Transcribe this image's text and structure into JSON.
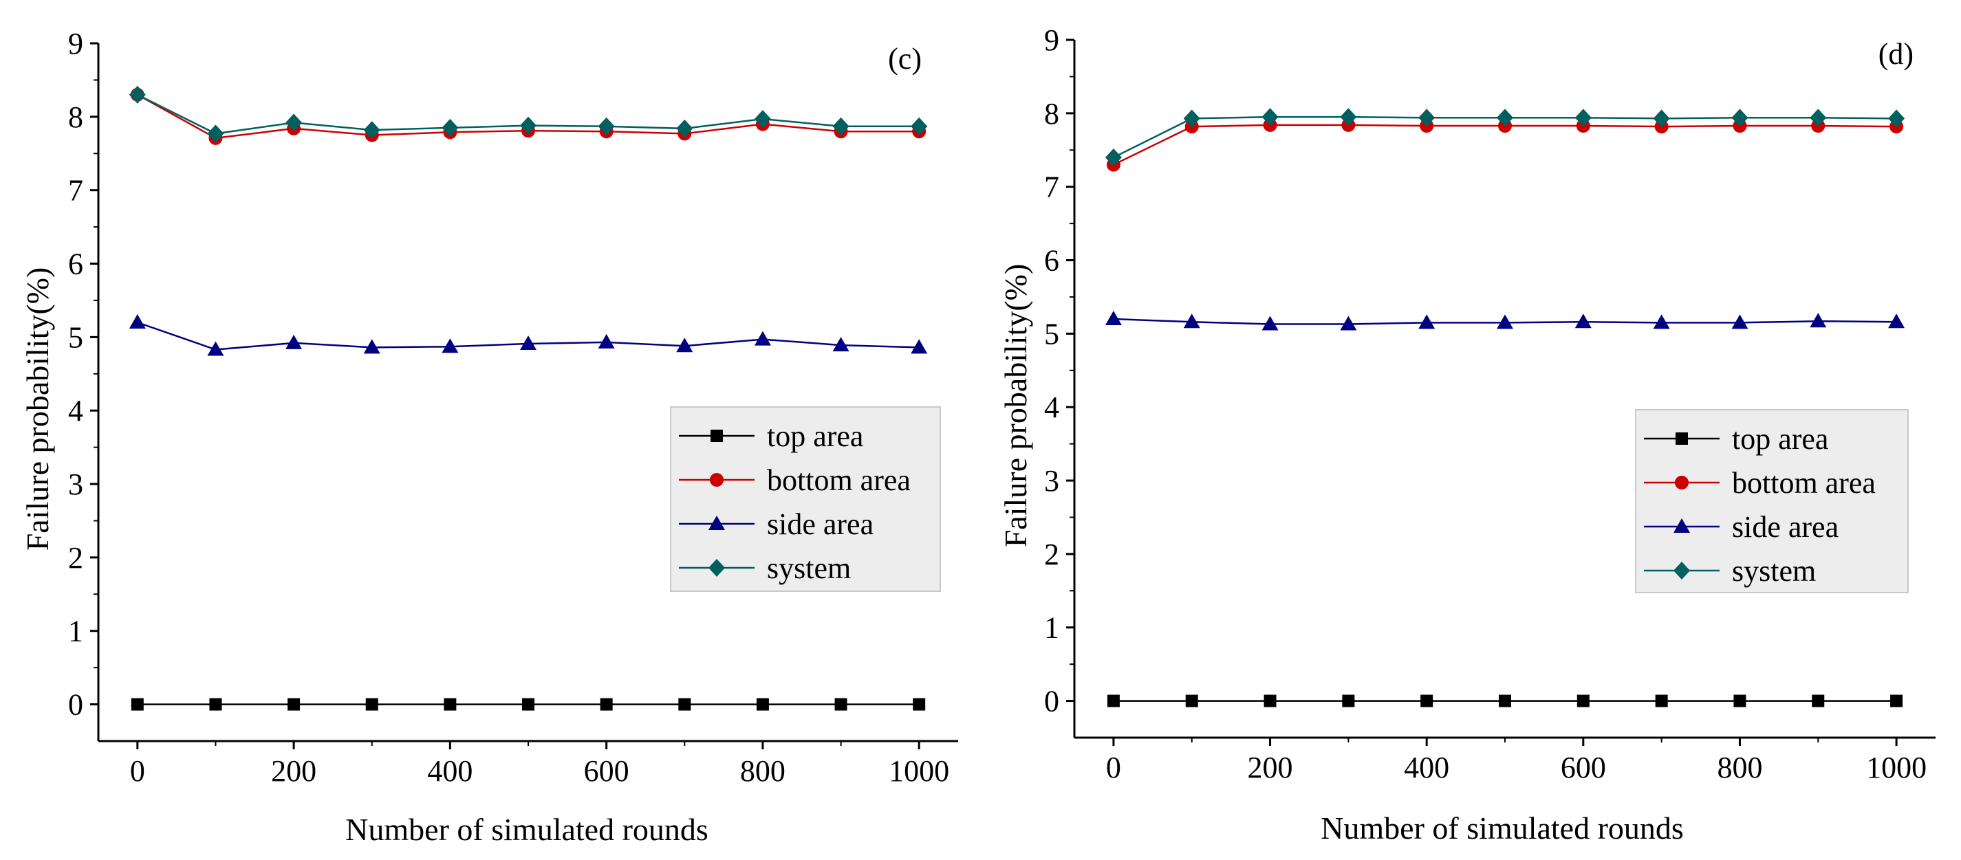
{
  "chart_data": [
    {
      "type": "line",
      "panel_label": "(c)",
      "xlabel": "Number of simulated rounds",
      "ylabel": "Failure probability(%)",
      "xlim": [
        -50,
        1050
      ],
      "ylim": [
        -0.5,
        9
      ],
      "xticks": [
        0,
        200,
        400,
        600,
        800,
        1000
      ],
      "xtick_labels": [
        "0",
        "200",
        "400",
        "600",
        "800",
        "1000"
      ],
      "yticks": [
        0,
        1,
        2,
        3,
        4,
        5,
        6,
        7,
        8,
        9
      ],
      "ytick_labels": [
        "0",
        "1",
        "2",
        "3",
        "4",
        "5",
        "6",
        "7",
        "8",
        "9"
      ],
      "x": [
        0,
        100,
        200,
        300,
        400,
        500,
        600,
        700,
        800,
        900,
        1000
      ],
      "legend_position": "center-right",
      "series": [
        {
          "name": "top area",
          "color": "#000000",
          "marker": "square",
          "values": [
            0,
            0,
            0,
            0,
            0,
            0,
            0,
            0,
            0,
            0,
            0
          ]
        },
        {
          "name": "bottom area",
          "color": "#cc0000",
          "marker": "circle",
          "values": [
            8.3,
            7.71,
            7.84,
            7.75,
            7.79,
            7.81,
            7.8,
            7.77,
            7.9,
            7.8,
            7.8
          ]
        },
        {
          "name": "side area",
          "color": "#000080",
          "marker": "triangle",
          "values": [
            5.2,
            4.83,
            4.92,
            4.86,
            4.87,
            4.91,
            4.93,
            4.88,
            4.97,
            4.89,
            4.86
          ]
        },
        {
          "name": "system",
          "color": "#006060",
          "marker": "diamond",
          "values": [
            8.3,
            7.77,
            7.92,
            7.82,
            7.85,
            7.88,
            7.87,
            7.84,
            7.97,
            7.87,
            7.87
          ]
        }
      ]
    },
    {
      "type": "line",
      "panel_label": "(d)",
      "xlabel": "Number of simulated rounds",
      "ylabel": "Failure probability(%)",
      "xlim": [
        -50,
        1050
      ],
      "ylim": [
        -0.5,
        9
      ],
      "xticks": [
        0,
        200,
        400,
        600,
        800,
        1000
      ],
      "xtick_labels": [
        "0",
        "200",
        "400",
        "600",
        "800",
        "1000"
      ],
      "yticks": [
        0,
        1,
        2,
        3,
        4,
        5,
        6,
        7,
        8,
        9
      ],
      "ytick_labels": [
        "0",
        "1",
        "2",
        "3",
        "4",
        "5",
        "6",
        "7",
        "8",
        "9"
      ],
      "x": [
        0,
        100,
        200,
        300,
        400,
        500,
        600,
        700,
        800,
        900,
        1000
      ],
      "legend_position": "center-right",
      "series": [
        {
          "name": "top area",
          "color": "#000000",
          "marker": "square",
          "values": [
            0,
            0,
            0,
            0,
            0,
            0,
            0,
            0,
            0,
            0,
            0
          ]
        },
        {
          "name": "bottom area",
          "color": "#cc0000",
          "marker": "circle",
          "values": [
            7.3,
            7.82,
            7.84,
            7.84,
            7.83,
            7.83,
            7.83,
            7.82,
            7.83,
            7.83,
            7.82
          ]
        },
        {
          "name": "side area",
          "color": "#000080",
          "marker": "triangle",
          "values": [
            5.2,
            5.16,
            5.13,
            5.13,
            5.15,
            5.15,
            5.16,
            5.15,
            5.15,
            5.17,
            5.16
          ]
        },
        {
          "name": "system",
          "color": "#006060",
          "marker": "diamond",
          "values": [
            7.4,
            7.93,
            7.95,
            7.95,
            7.94,
            7.94,
            7.94,
            7.93,
            7.94,
            7.94,
            7.93
          ]
        }
      ]
    }
  ]
}
